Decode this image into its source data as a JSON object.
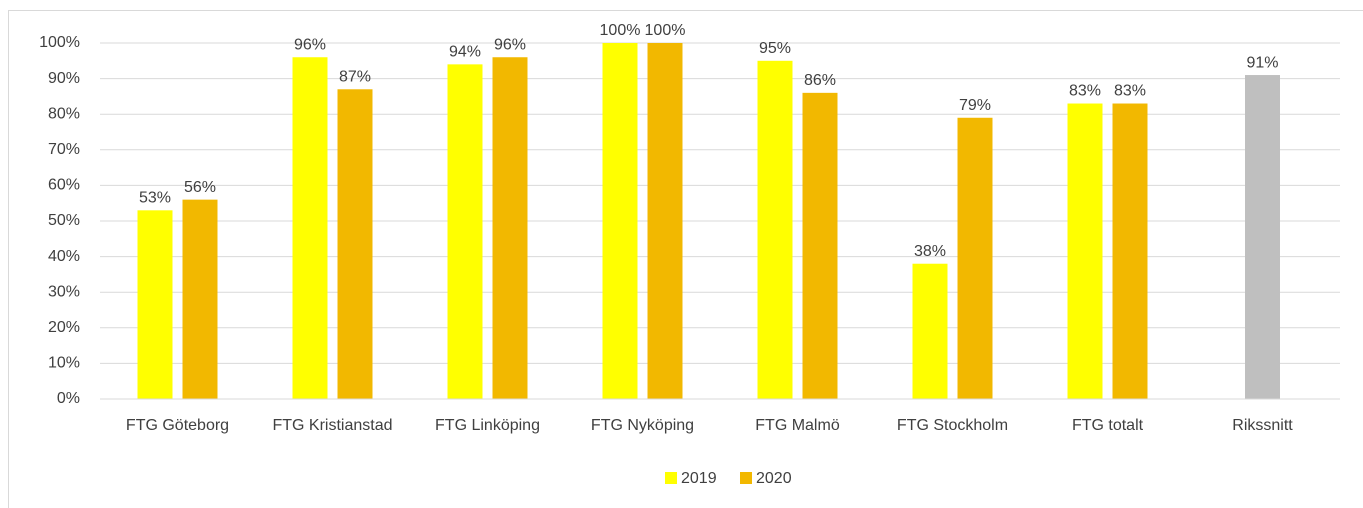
{
  "chart_data": {
    "type": "bar",
    "categories": [
      "FTG Göteborg",
      "FTG Kristianstad",
      "FTG Linköping",
      "FTG Nyköping",
      "FTG Malmö",
      "FTG Stockholm",
      "FTG totalt",
      "Rikssnitt"
    ],
    "series": [
      {
        "name": "2019",
        "color": "#ffff00",
        "colors": [
          "#ffff00",
          "#ffff00",
          "#ffff00",
          "#ffff00",
          "#ffff00",
          "#ffff00",
          "#ffff00",
          "#bfbfbf"
        ],
        "values": [
          53,
          96,
          94,
          100,
          95,
          38,
          83,
          91
        ],
        "value_labels": [
          "53%",
          "96%",
          "94%",
          "100%",
          "95%",
          "38%",
          "83%",
          "91%"
        ]
      },
      {
        "name": "2020",
        "color": "#f2b800",
        "values": [
          56,
          87,
          96,
          100,
          86,
          79,
          83,
          null
        ],
        "value_labels": [
          "56%",
          "87%",
          "96%",
          "100%",
          "86%",
          "79%",
          "83%",
          null
        ]
      }
    ],
    "ylim": [
      0,
      100
    ],
    "yticks": [
      {
        "value": 0,
        "label": "0%"
      },
      {
        "value": 10,
        "label": "10%"
      },
      {
        "value": 20,
        "label": "20%"
      },
      {
        "value": 30,
        "label": "30%"
      },
      {
        "value": 40,
        "label": "40%"
      },
      {
        "value": 50,
        "label": "50%"
      },
      {
        "value": 60,
        "label": "60%"
      },
      {
        "value": 70,
        "label": "70%"
      },
      {
        "value": 80,
        "label": "80%"
      },
      {
        "value": 90,
        "label": "90%"
      },
      {
        "value": 100,
        "label": "100%"
      }
    ],
    "grid": true,
    "legend": "bottom"
  }
}
